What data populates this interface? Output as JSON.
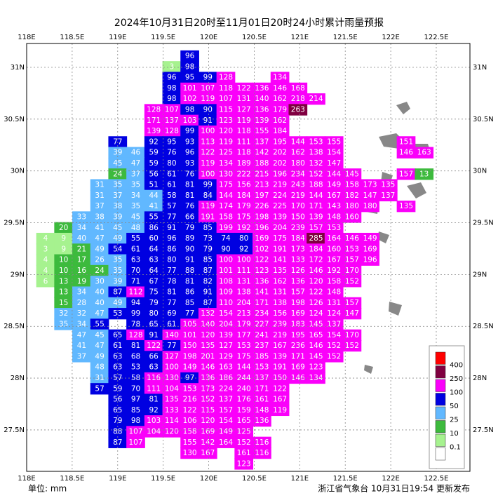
{
  "chart_data": {
    "type": "grid-map",
    "title": "2024年10月31日20时至11月01日20时24小时累计雨量预报",
    "unit_text": "单位: mm",
    "footer": "浙江省气象台 10月31日19:54 更新发布",
    "xlim": [
      118,
      122.87
    ],
    "ylim": [
      27.1,
      31.23
    ],
    "grid": true,
    "xticks": [
      {
        "value": 118,
        "label": "118E"
      },
      {
        "value": 118.5,
        "label": "118.5E"
      },
      {
        "value": 119,
        "label": "119E"
      },
      {
        "value": 119.5,
        "label": "119.5E"
      },
      {
        "value": 120,
        "label": "120E"
      },
      {
        "value": 120.5,
        "label": "120.5E"
      },
      {
        "value": 121,
        "label": "121E"
      },
      {
        "value": 121.5,
        "label": "121.5E"
      },
      {
        "value": 122,
        "label": "122E"
      },
      {
        "value": 122.5,
        "label": "122.5E"
      }
    ],
    "yticks": [
      {
        "value": 27.5,
        "label": "27.5N"
      },
      {
        "value": 28,
        "label": "28N"
      },
      {
        "value": 28.5,
        "label": "28.5N"
      },
      {
        "value": 29,
        "label": "29N"
      },
      {
        "value": 29.5,
        "label": "29.5N"
      },
      {
        "value": 30,
        "label": "30N"
      },
      {
        "value": 30.5,
        "label": "30.5N"
      },
      {
        "value": 31,
        "label": "31N"
      }
    ],
    "legend_levels": [
      0.1,
      10,
      25,
      50,
      100,
      250,
      400
    ],
    "legend_colors": [
      "#ffffff",
      "#a6f28f",
      "#3dba3d",
      "#61b8ff",
      "#0000e1",
      "#fa00fa",
      "#800040",
      "#ff0000"
    ],
    "rows": [
      [
        null,
        null,
        null,
        null,
        null,
        null,
        null,
        null,
        96
      ],
      [
        null,
        null,
        null,
        null,
        null,
        null,
        null,
        3,
        98
      ],
      [
        null,
        null,
        null,
        null,
        null,
        null,
        null,
        96,
        95,
        99,
        128,
        null,
        null,
        134
      ],
      [
        null,
        null,
        null,
        null,
        null,
        null,
        null,
        98,
        101,
        107,
        118,
        122,
        136,
        146,
        168
      ],
      [
        null,
        null,
        null,
        null,
        null,
        null,
        null,
        98,
        102,
        119,
        107,
        131,
        140,
        162,
        218,
        214
      ],
      [
        null,
        null,
        null,
        null,
        null,
        null,
        128,
        107,
        98,
        90,
        115,
        127,
        136,
        179,
        263
      ],
      [
        null,
        null,
        null,
        null,
        null,
        null,
        171,
        137,
        103,
        91,
        123,
        119,
        139,
        162
      ],
      [
        null,
        null,
        null,
        null,
        null,
        null,
        139,
        128,
        99,
        100,
        120,
        118,
        155,
        184
      ],
      [
        null,
        null,
        null,
        null,
        77,
        null,
        92,
        95,
        93,
        113,
        119,
        111,
        137,
        195,
        144,
        153,
        155,
        null,
        null,
        null,
        151
      ],
      [
        null,
        null,
        null,
        null,
        39,
        46,
        59,
        76,
        96,
        122,
        125,
        118,
        142,
        202,
        162,
        138,
        154,
        null,
        null,
        null,
        146,
        163
      ],
      [
        null,
        null,
        null,
        null,
        45,
        47,
        59,
        80,
        93,
        119,
        134,
        189,
        188,
        202,
        180,
        132,
        147
      ],
      [
        null,
        null,
        null,
        null,
        24,
        37,
        56,
        61,
        76,
        100,
        130,
        222,
        215,
        196,
        234,
        152,
        144,
        145,
        null,
        null,
        157,
        13
      ],
      [
        null,
        null,
        null,
        31,
        35,
        35,
        51,
        61,
        81,
        99,
        175,
        156,
        213,
        219,
        243,
        188,
        149,
        158,
        173,
        135
      ],
      [
        null,
        null,
        null,
        31,
        37,
        34,
        44,
        58,
        81,
        84,
        144,
        184,
        197,
        224,
        219,
        144,
        167,
        182,
        147,
        137
      ],
      [
        null,
        null,
        null,
        37,
        38,
        35,
        41,
        57,
        76,
        119,
        174,
        179,
        226,
        225,
        170,
        171,
        143,
        180,
        180,
        null,
        135
      ],
      [
        null,
        null,
        33,
        38,
        39,
        45,
        55,
        77,
        66,
        191,
        158,
        175,
        198,
        139,
        150,
        139,
        148,
        160
      ],
      [
        null,
        20,
        34,
        41,
        45,
        48,
        86,
        91,
        79,
        85,
        199,
        192,
        196,
        204,
        239,
        157,
        153
      ],
      [
        4,
        9,
        40,
        47,
        49,
        55,
        60,
        96,
        89,
        73,
        74,
        80,
        169,
        175,
        184,
        285,
        164,
        146,
        149
      ],
      [
        3,
        9,
        21,
        49,
        54,
        61,
        64,
        86,
        90,
        79,
        90,
        92,
        102,
        191,
        173,
        184,
        160,
        153,
        169
      ],
      [
        4,
        10,
        17,
        26,
        35,
        63,
        63,
        80,
        91,
        85,
        100,
        100,
        122,
        141,
        133,
        172,
        167,
        157,
        196
      ],
      [
        4,
        10,
        16,
        24,
        35,
        70,
        64,
        77,
        88,
        87,
        101,
        111,
        123,
        135,
        126,
        146,
        192,
        170
      ],
      [
        6,
        13,
        19,
        30,
        39,
        71,
        67,
        78,
        81,
        82,
        108,
        131,
        136,
        162,
        136,
        120,
        158,
        152
      ],
      [
        null,
        13,
        34,
        40,
        87,
        112,
        75,
        81,
        86,
        91,
        109,
        138,
        141,
        131,
        157,
        122,
        148
      ],
      [
        null,
        15,
        28,
        40,
        49,
        94,
        79,
        77,
        85,
        87,
        110,
        204,
        171,
        138,
        198,
        126,
        131,
        157
      ],
      [
        null,
        32,
        32,
        47,
        53,
        99,
        80,
        69,
        77,
        132,
        154,
        213,
        234,
        156,
        169,
        124,
        124,
        147
      ],
      [
        null,
        35,
        34,
        55,
        null,
        78,
        65,
        61,
        105,
        140,
        204,
        179,
        227,
        239,
        183,
        145,
        137
      ],
      [
        null,
        null,
        47,
        45,
        65,
        128,
        91,
        140,
        101,
        120,
        139,
        177,
        241,
        219,
        195,
        165,
        154,
        170
      ],
      [
        null,
        null,
        41,
        47,
        61,
        81,
        122,
        77,
        150,
        135,
        127,
        153,
        237,
        167,
        236,
        146,
        152,
        152
      ],
      [
        null,
        null,
        37,
        49,
        63,
        68,
        66,
        127,
        198,
        201,
        129,
        175,
        185,
        139,
        171,
        145,
        152
      ],
      [
        null,
        null,
        null,
        48,
        63,
        53,
        63,
        100,
        149,
        146,
        163,
        144,
        153,
        191,
        169,
        123
      ],
      [
        null,
        null,
        null,
        31,
        57,
        58,
        116,
        130,
        97,
        136,
        186,
        244,
        137,
        150,
        146,
        134
      ],
      [
        null,
        null,
        null,
        57,
        59,
        70,
        111,
        104,
        153,
        173,
        224,
        240,
        171,
        122
      ],
      [
        null,
        null,
        null,
        null,
        56,
        97,
        81,
        135,
        216,
        152,
        137,
        176,
        161,
        167
      ],
      [
        null,
        null,
        null,
        null,
        65,
        85,
        92,
        133,
        122,
        115,
        157,
        159,
        148,
        119
      ],
      [
        null,
        null,
        null,
        null,
        79,
        98,
        103,
        114,
        106,
        120,
        154,
        165,
        136
      ],
      [
        null,
        null,
        null,
        null,
        88,
        107,
        104,
        120,
        158,
        169,
        149,
        125
      ],
      [
        null,
        null,
        null,
        null,
        87,
        107,
        null,
        null,
        155,
        142,
        164,
        152,
        116
      ],
      [
        null,
        null,
        null,
        null,
        null,
        null,
        null,
        null,
        130,
        167,
        null,
        161,
        116
      ],
      [
        null,
        null,
        null,
        null,
        null,
        null,
        null,
        null,
        null,
        null,
        null,
        123
      ]
    ]
  }
}
